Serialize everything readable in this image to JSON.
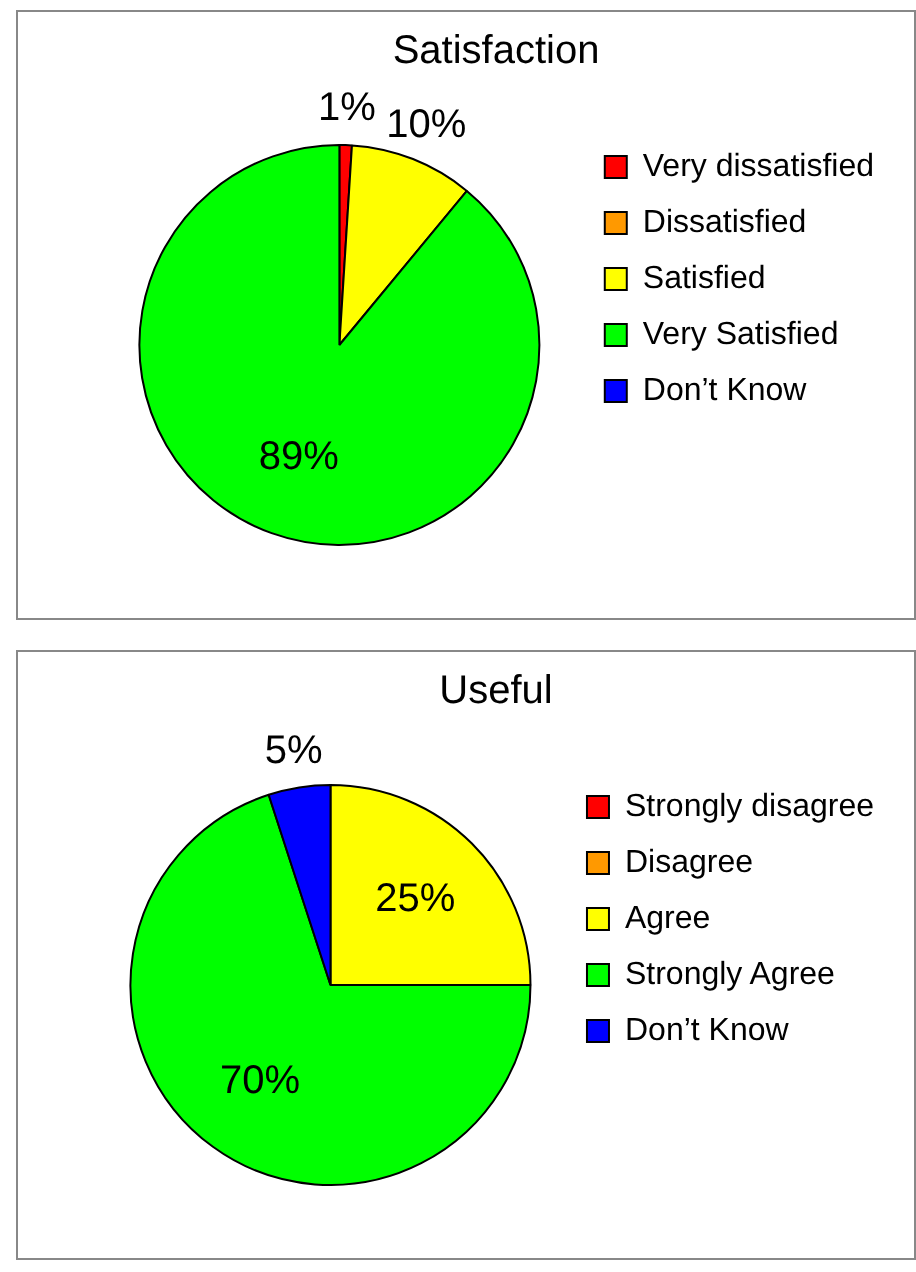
{
  "chart_data": [
    {
      "type": "pie",
      "title": "Satisfaction",
      "categories": [
        "Very dissatisfied",
        "Dissatisfied",
        "Satisfied",
        "Very Satisfied",
        "Don’t Know"
      ],
      "values": [
        1,
        0,
        10,
        89,
        0
      ],
      "value_labels": [
        "1%",
        null,
        "10%",
        "89%",
        null
      ],
      "colors": [
        "#ff0000",
        "#ff9900",
        "#ffff00",
        "#00ff00",
        "#0000ff"
      ],
      "legend": "right"
    },
    {
      "type": "pie",
      "title": "Useful",
      "categories": [
        "Strongly disagree",
        "Disagree",
        "Agree",
        "Strongly Agree",
        "Don’t Know"
      ],
      "values": [
        0,
        0,
        25,
        70,
        5
      ],
      "value_labels": [
        null,
        null,
        "25%",
        "70%",
        "5%"
      ],
      "colors": [
        "#ff0000",
        "#ff9900",
        "#ffff00",
        "#00ff00",
        "#0000ff"
      ],
      "legend": "right"
    }
  ]
}
